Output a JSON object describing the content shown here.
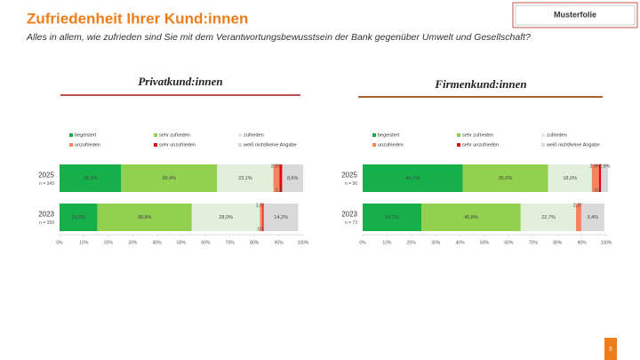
{
  "header": {
    "title": "Zufriedenheit Ihrer Kund:innen",
    "subtitle": "Alles in allem, wie zufrieden sind Sie mit dem Verantwortungsbewusstsein der Bank gegenüber Umwelt und Gesellschaft?",
    "tag": "Musterfolie",
    "page": "5"
  },
  "chart_data": [
    {
      "type": "stacked-bar-horizontal",
      "title": "Privatkund:innen",
      "underline_color": "#c0504d",
      "categories": [
        "2025",
        "2023"
      ],
      "category_notes": [
        "n = 349",
        "n = 399"
      ],
      "xlim": [
        0,
        100
      ],
      "xticks": [
        {
          "value": 0,
          "label": "0%"
        },
        {
          "value": 10,
          "label": "10%"
        },
        {
          "value": 20,
          "label": "20%"
        },
        {
          "value": 30,
          "label": "30%"
        },
        {
          "value": 40,
          "label": "40%"
        },
        {
          "value": 50,
          "label": "50%"
        },
        {
          "value": 60,
          "label": "60%"
        },
        {
          "value": 70,
          "label": "70%"
        },
        {
          "value": 80,
          "label": "80%"
        },
        {
          "value": 90,
          "label": "90%"
        },
        {
          "value": 100,
          "label": "100%"
        }
      ],
      "series": [
        {
          "name": "begeistert",
          "color": "#16b04b",
          "values": [
            25.3,
            15.5
          ],
          "value_labels": [
            "25,3%",
            "15,5%"
          ]
        },
        {
          "name": "sehr zufrieden",
          "color": "#92d050",
          "values": [
            39.4,
            38.8
          ],
          "value_labels": [
            "39,4%",
            "38,8%"
          ]
        },
        {
          "name": "zufrieden",
          "color": "#e2efda",
          "values": [
            23.1,
            28.0
          ],
          "value_labels": [
            "23,1%",
            "28,0%"
          ]
        },
        {
          "name": "unzufrieden",
          "color": "#f4845f",
          "values": [
            2.5,
            1.0
          ],
          "value_labels": [
            "2,5%",
            "1,0%"
          ]
        },
        {
          "name": "sehr unzufrieden",
          "color": "#e30613",
          "values": [
            1.1,
            0.5
          ],
          "value_labels": [
            "1,1%",
            "0,5%"
          ]
        },
        {
          "name": "weiß nicht/keine Angabe",
          "color": "#d9d9d9",
          "values": [
            8.6,
            14.2
          ],
          "value_labels": [
            "8,6%",
            "14,2%"
          ]
        }
      ]
    },
    {
      "type": "stacked-bar-horizontal",
      "title": "Firmenkund:innen",
      "underline_color": "#a5622b",
      "categories": [
        "2025",
        "2023"
      ],
      "category_notes": [
        "n = 96",
        "n = 73"
      ],
      "xlim": [
        0,
        100
      ],
      "xticks": [
        {
          "value": 0,
          "label": "0%"
        },
        {
          "value": 10,
          "label": "10%"
        },
        {
          "value": 20,
          "label": "20%"
        },
        {
          "value": 30,
          "label": "30%"
        },
        {
          "value": 40,
          "label": "40%"
        },
        {
          "value": 50,
          "label": "50%"
        },
        {
          "value": 60,
          "label": "60%"
        },
        {
          "value": 70,
          "label": "70%"
        },
        {
          "value": 80,
          "label": "80%"
        },
        {
          "value": 90,
          "label": "90%"
        },
        {
          "value": 100,
          "label": "100%"
        }
      ],
      "series": [
        {
          "name": "begeistert",
          "color": "#16b04b",
          "values": [
            41.1,
            24.1
          ],
          "value_labels": [
            "41,1%",
            "24,1%"
          ]
        },
        {
          "name": "sehr zufrieden",
          "color": "#92d050",
          "values": [
            35.0,
            40.8
          ],
          "value_labels": [
            "35,0%",
            "40,8%"
          ]
        },
        {
          "name": "zufrieden",
          "color": "#e2efda",
          "values": [
            18.0,
            22.7
          ],
          "value_labels": [
            "18,0%",
            "22,7%"
          ]
        },
        {
          "name": "unzufrieden",
          "color": "#f4845f",
          "values": [
            2.9,
            2.2
          ],
          "value_labels": [
            "2,9%",
            "2,2%"
          ]
        },
        {
          "name": "sehr unzufrieden",
          "color": "#e30613",
          "values": [
            0.9,
            null
          ],
          "value_labels": [
            "0,9%",
            null
          ]
        },
        {
          "name": "weiß nicht/keine Angabe",
          "color": "#d9d9d9",
          "values": [
            2.9,
            9.4
          ],
          "value_labels": [
            "2,9%",
            "9,4%"
          ]
        }
      ]
    }
  ]
}
